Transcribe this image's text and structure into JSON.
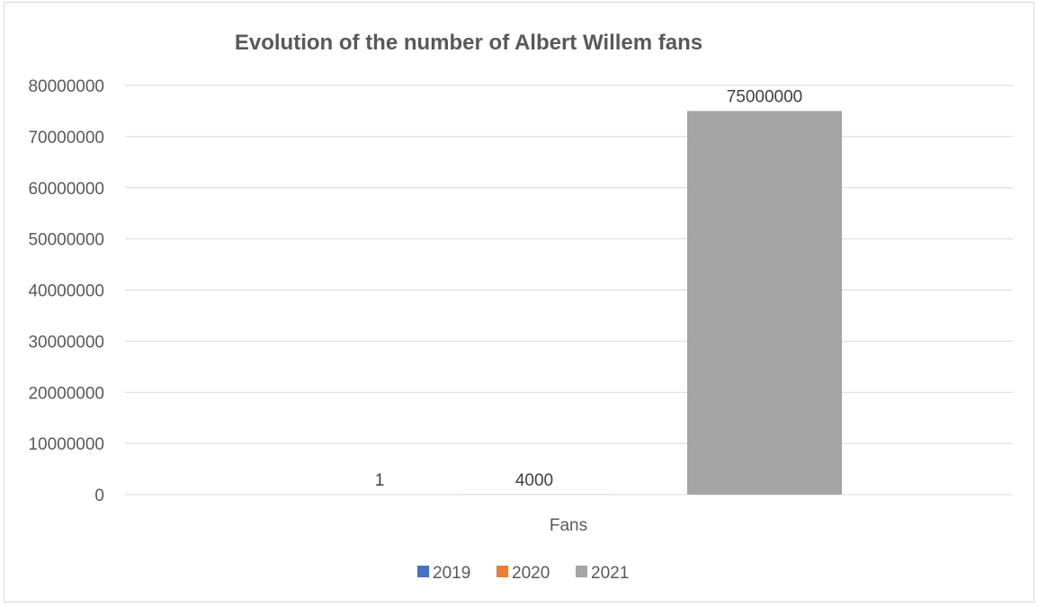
{
  "chart_data": {
    "type": "bar",
    "title": "Evolution of the number of Albert Willem fans",
    "xlabel": "",
    "ylabel": "",
    "categories": [
      "Fans"
    ],
    "series": [
      {
        "name": "2019",
        "values": [
          1
        ],
        "color": "#4472c4"
      },
      {
        "name": "2020",
        "values": [
          4000
        ],
        "color": "#ed7d31"
      },
      {
        "name": "2021",
        "values": [
          75000000
        ],
        "color": "#a5a5a5"
      }
    ],
    "ylim": [
      0,
      80000000
    ],
    "yticks": [
      "0",
      "10000000",
      "20000000",
      "30000000",
      "40000000",
      "50000000",
      "60000000",
      "70000000",
      "80000000"
    ],
    "data_labels": [
      "1",
      "4000",
      "75000000"
    ],
    "grid": true,
    "legend_position": "bottom",
    "gridline_color": "#d9d9d9"
  }
}
